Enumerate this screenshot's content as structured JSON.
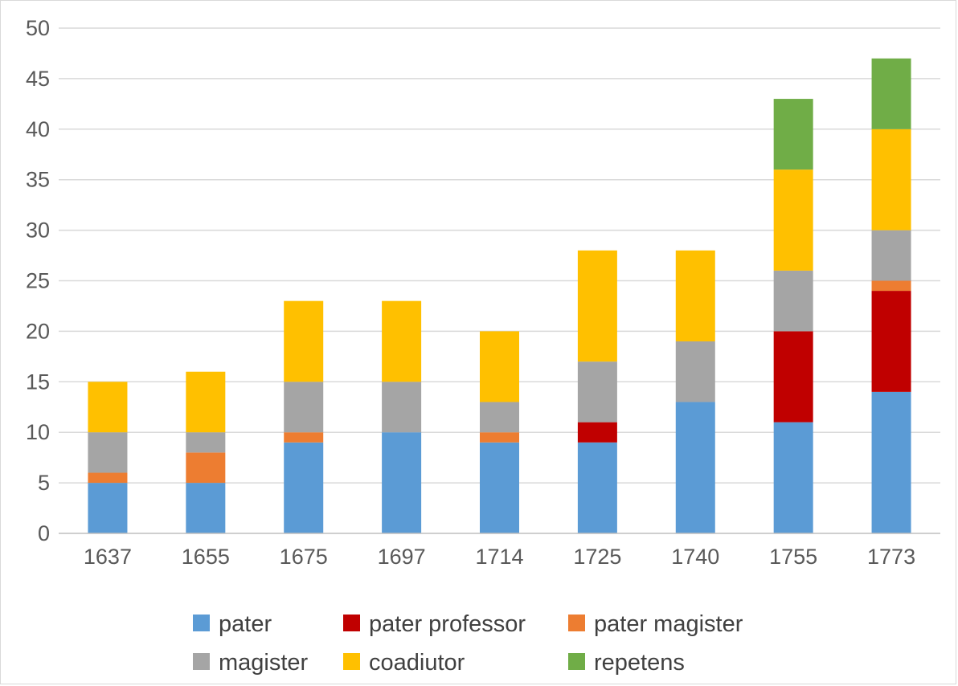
{
  "chart_data": {
    "type": "bar",
    "stacked": true,
    "categories": [
      "1637",
      "1655",
      "1675",
      "1697",
      "1714",
      "1725",
      "1740",
      "1755",
      "1773"
    ],
    "series": [
      {
        "name": "pater",
        "color": "#5b9bd5",
        "values": [
          5,
          5,
          9,
          10,
          9,
          9,
          13,
          11,
          14
        ]
      },
      {
        "name": "pater professor",
        "color": "#c00000",
        "values": [
          0,
          0,
          0,
          0,
          0,
          2,
          0,
          9,
          10
        ]
      },
      {
        "name": "pater magister",
        "color": "#ed7d31",
        "values": [
          1,
          3,
          1,
          0,
          1,
          0,
          0,
          0,
          1
        ]
      },
      {
        "name": "magister",
        "color": "#a5a5a5",
        "values": [
          4,
          2,
          5,
          5,
          3,
          6,
          6,
          6,
          5
        ]
      },
      {
        "name": "coadiutor",
        "color": "#ffc000",
        "values": [
          5,
          6,
          8,
          8,
          7,
          11,
          9,
          10,
          10
        ]
      },
      {
        "name": "repetens",
        "color": "#70ad47",
        "values": [
          0,
          0,
          0,
          0,
          0,
          0,
          0,
          7,
          7
        ]
      }
    ],
    "ylim": [
      0,
      50
    ],
    "yticks": [
      0,
      5,
      10,
      15,
      20,
      25,
      30,
      35,
      40,
      45,
      50
    ],
    "grid": true,
    "legend_position": "bottom",
    "legend_order": [
      "pater",
      "pater professor",
      "pater magister",
      "magister",
      "coadiutor",
      "repetens"
    ]
  }
}
